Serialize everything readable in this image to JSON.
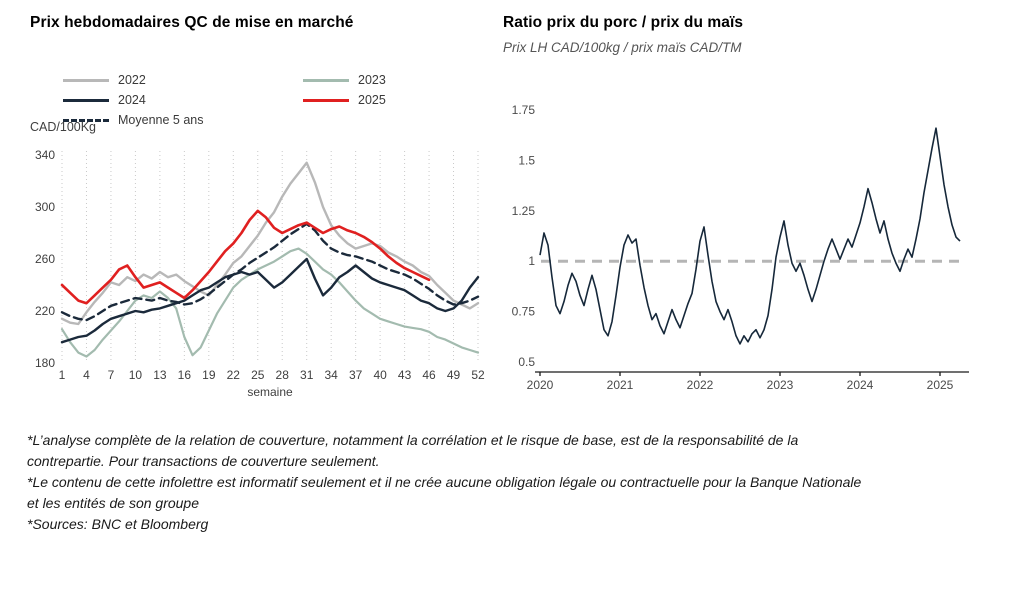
{
  "left_chart": {
    "title": "Prix hebdomadaires QC de mise en marché",
    "y_axis_label": "CAD/100Kg",
    "x_axis_label": "semaine"
  },
  "right_chart": {
    "title": "Ratio prix du porc / prix du maïs",
    "subtitle": "Prix LH CAD/100kg / prix maïs CAD/TM"
  },
  "footnotes": {
    "p1": "*L’analyse complète de la relation de couverture, notamment la corrélation et le risque de base, est de la responsabilité de la contrepartie. Pour transactions de couverture seulement.",
    "p2": "*Le contenu de cette infolettre est informatif seulement et il ne crée aucune obligation légale ou contractuelle pour la Banque Nationale et les entités de son groupe",
    "p3": "*Sources: BNC et Bloomberg"
  },
  "chart_data": [
    {
      "type": "line",
      "title": "Prix hebdomadaires QC de mise en marché",
      "xlabel": "semaine",
      "ylabel": "CAD/100Kg",
      "ylim": [
        180,
        340
      ],
      "yticks": [
        180,
        220,
        260,
        300,
        340
      ],
      "xticks": [
        1,
        4,
        7,
        10,
        13,
        16,
        19,
        22,
        25,
        28,
        31,
        34,
        37,
        40,
        43,
        46,
        49,
        52
      ],
      "x_start": 1,
      "x_step": 1,
      "weeks": 52,
      "grid": "vertical-dotted",
      "legend_position": "top-left-two-columns",
      "series": [
        {
          "name": "2022",
          "color": "#b8b8b8",
          "dash": "",
          "width": 2.4,
          "values": [
            214,
            211,
            210,
            219,
            227,
            234,
            242,
            240,
            246,
            243,
            248,
            245,
            250,
            246,
            248,
            243,
            239,
            235,
            232,
            240,
            248,
            257,
            262,
            270,
            278,
            288,
            296,
            308,
            318,
            326,
            334,
            319,
            300,
            286,
            278,
            272,
            268,
            270,
            272,
            270,
            265,
            262,
            258,
            255,
            250,
            247,
            240,
            234,
            228,
            225,
            222,
            226
          ]
        },
        {
          "name": "2023",
          "color": "#a3bbaf",
          "dash": "",
          "width": 2.2,
          "values": [
            206,
            196,
            188,
            185,
            190,
            198,
            205,
            212,
            220,
            228,
            232,
            230,
            235,
            230,
            222,
            200,
            186,
            192,
            205,
            218,
            228,
            238,
            244,
            248,
            252,
            255,
            258,
            262,
            266,
            268,
            264,
            258,
            252,
            248,
            242,
            235,
            228,
            222,
            218,
            214,
            212,
            210,
            208,
            207,
            206,
            204,
            200,
            198,
            195,
            192,
            190,
            188
          ]
        },
        {
          "name": "2024",
          "color": "#1b2a3b",
          "dash": "",
          "width": 2.4,
          "values": [
            196,
            198,
            200,
            201,
            205,
            210,
            214,
            216,
            218,
            220,
            219,
            221,
            222,
            224,
            226,
            228,
            232,
            236,
            238,
            242,
            246,
            248,
            250,
            248,
            250,
            244,
            238,
            242,
            248,
            254,
            260,
            245,
            232,
            238,
            246,
            250,
            255,
            250,
            245,
            242,
            240,
            238,
            236,
            232,
            228,
            226,
            222,
            220,
            222,
            228,
            238,
            246
          ]
        },
        {
          "name": "2025",
          "color": "#e02020",
          "dash": "",
          "width": 2.6,
          "values": [
            240,
            234,
            228,
            226,
            232,
            238,
            244,
            252,
            255,
            246,
            238,
            240,
            242,
            238,
            234,
            230,
            236,
            243,
            250,
            258,
            266,
            272,
            280,
            290,
            297,
            292,
            284,
            280,
            283,
            286,
            288,
            284,
            280,
            283,
            285,
            282,
            280,
            277,
            273,
            268,
            262,
            257,
            253,
            250,
            247,
            244
          ]
        },
        {
          "name": "Moyenne 5 ans",
          "color": "#1b2a3b",
          "dash": "8,5",
          "width": 2.4,
          "values": [
            219,
            216,
            214,
            213,
            216,
            220,
            224,
            226,
            228,
            230,
            229,
            228,
            230,
            228,
            227,
            225,
            226,
            229,
            233,
            238,
            243,
            248,
            252,
            257,
            261,
            265,
            269,
            274,
            279,
            283,
            287,
            282,
            274,
            268,
            265,
            263,
            262,
            260,
            258,
            255,
            252,
            250,
            248,
            245,
            241,
            237,
            232,
            228,
            225,
            226,
            228,
            231
          ]
        }
      ]
    },
    {
      "type": "line",
      "title": "Ratio prix du porc / prix du maïs",
      "subtitle": "Prix LH CAD/100kg / prix maïs CAD/TM",
      "ylim": [
        0.5,
        1.75
      ],
      "yticks": [
        0.5,
        0.75,
        1,
        1.25,
        1.5,
        1.75
      ],
      "ytick_labels": [
        "0.5",
        "0.75",
        "1",
        "1.25",
        "1.5",
        "1.75"
      ],
      "xticks": [
        2020,
        2021,
        2022,
        2023,
        2024,
        2025
      ],
      "reference_line": 1,
      "reference_line_color": "#b5b5b5",
      "grid": "off",
      "series": [
        {
          "name": "ratio",
          "color": "#16283a",
          "width": 1.6,
          "x_start": 2020,
          "x_step": 0.05,
          "values": [
            1.03,
            1.14,
            1.08,
            0.92,
            0.78,
            0.74,
            0.8,
            0.88,
            0.94,
            0.9,
            0.83,
            0.78,
            0.86,
            0.93,
            0.86,
            0.76,
            0.66,
            0.63,
            0.7,
            0.83,
            0.97,
            1.08,
            1.13,
            1.09,
            1.11,
            0.98,
            0.87,
            0.78,
            0.71,
            0.74,
            0.68,
            0.64,
            0.7,
            0.76,
            0.71,
            0.67,
            0.73,
            0.79,
            0.84,
            0.96,
            1.1,
            1.17,
            1.03,
            0.9,
            0.8,
            0.75,
            0.71,
            0.76,
            0.7,
            0.63,
            0.59,
            0.63,
            0.6,
            0.64,
            0.66,
            0.62,
            0.66,
            0.73,
            0.86,
            1.02,
            1.12,
            1.2,
            1.08,
            0.99,
            0.95,
            0.99,
            0.93,
            0.86,
            0.8,
            0.86,
            0.93,
            1.0,
            1.06,
            1.11,
            1.06,
            1.01,
            1.06,
            1.11,
            1.07,
            1.13,
            1.19,
            1.27,
            1.36,
            1.29,
            1.21,
            1.14,
            1.2,
            1.11,
            1.04,
            0.99,
            0.95,
            1.01,
            1.06,
            1.02,
            1.11,
            1.21,
            1.34,
            1.45,
            1.56,
            1.66,
            1.52,
            1.38,
            1.27,
            1.18,
            1.12,
            1.1
          ]
        }
      ]
    }
  ]
}
